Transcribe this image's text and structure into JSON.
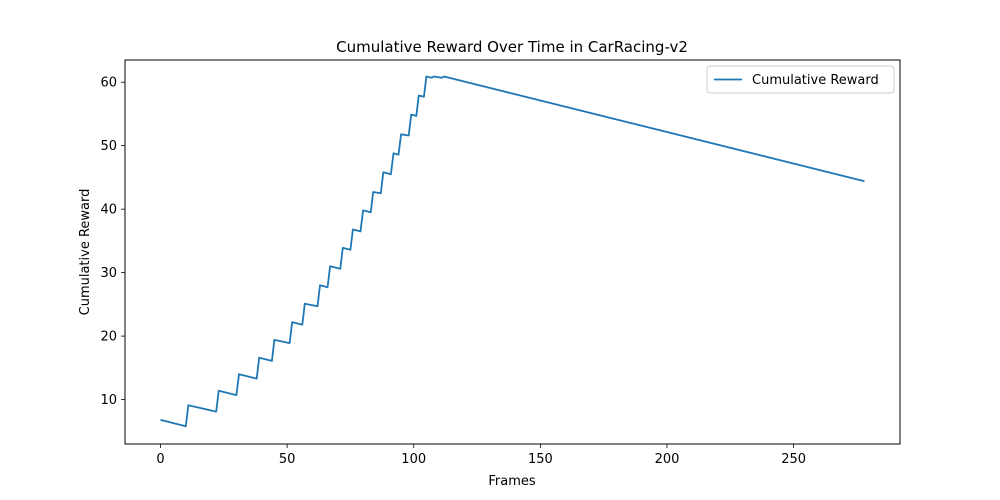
{
  "chart_data": {
    "type": "line",
    "title": "Cumulative Reward Over Time in CarRacing-v2",
    "xlabel": "Frames",
    "ylabel": "Cumulative Reward",
    "xlim": [
      -14,
      292
    ],
    "ylim": [
      3,
      63.5
    ],
    "xticks": [
      0,
      50,
      100,
      150,
      200,
      250
    ],
    "yticks": [
      10,
      20,
      30,
      40,
      50,
      60
    ],
    "grid": false,
    "legend": {
      "position": "top-right",
      "entries": [
        "Cumulative Reward"
      ]
    },
    "series": [
      {
        "name": "Cumulative Reward",
        "color": "#1f77b4",
        "x": [
          0,
          10,
          11,
          22,
          23,
          30,
          31,
          38,
          39,
          44,
          45,
          51,
          52,
          56,
          57,
          62,
          63,
          66,
          67,
          71,
          72,
          75,
          76,
          79,
          80,
          83,
          84,
          87,
          88,
          91,
          92,
          94,
          95,
          98,
          99,
          101,
          102,
          104,
          105,
          107,
          108,
          111,
          112,
          278
        ],
        "y": [
          6.8,
          5.8,
          9.1,
          8.1,
          11.4,
          10.7,
          14.0,
          13.3,
          16.6,
          16.1,
          19.4,
          18.9,
          22.2,
          21.8,
          25.1,
          24.7,
          28.0,
          27.7,
          31.0,
          30.6,
          33.9,
          33.6,
          36.8,
          36.5,
          39.8,
          39.5,
          42.7,
          42.5,
          45.8,
          45.5,
          48.8,
          48.6,
          51.8,
          51.6,
          54.9,
          54.7,
          57.9,
          57.7,
          60.9,
          60.7,
          60.9,
          60.7,
          60.9,
          44.4
        ]
      }
    ]
  }
}
